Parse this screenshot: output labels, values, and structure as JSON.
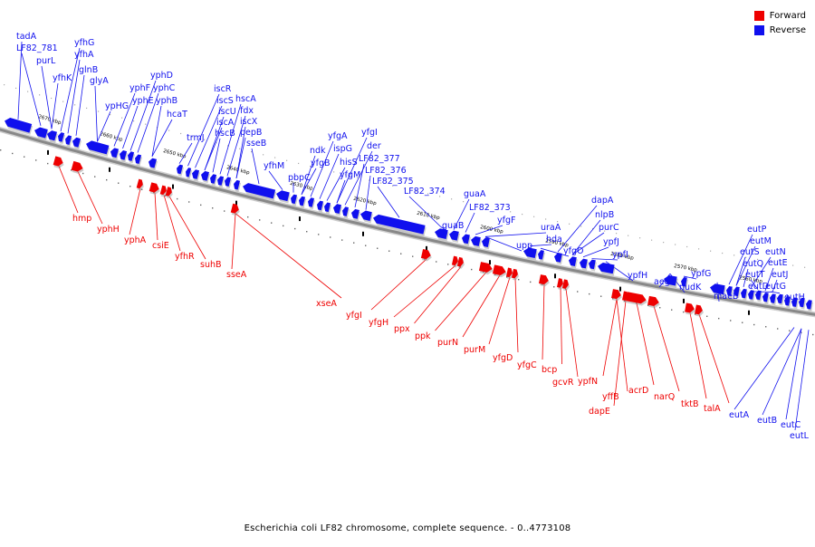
{
  "legend": {
    "forward": {
      "label": "Forward",
      "color": "#ee0000"
    },
    "reverse": {
      "label": "Reverse",
      "color": "#1010ee"
    }
  },
  "caption": "Escherichia coli LF82 chromosome, complete sequence. - 0..4773108",
  "backbone_color": "#888888",
  "ticks": [
    "2670 kbp",
    "2660 kbp",
    "2650 kbp",
    "2640 kbp",
    "2630 kbp",
    "2620 kbp",
    "2610 kbp",
    "2600 kbp",
    "2590 kbp",
    "2580 kbp",
    "2570 kbp",
    "2560 kbp"
  ],
  "reverse_genes": [
    "tadA",
    "LF82_781",
    "purL",
    "yfhK",
    "yfhG",
    "yfhA",
    "glnB",
    "glyA",
    "ypHG",
    "yphF",
    "yphE",
    "yphD",
    "yphC",
    "yphB",
    "hcaT",
    "trmJ",
    "iscR",
    "iscS",
    "iscU",
    "iscA",
    "hscB",
    "hscA",
    "fdx",
    "iscX",
    "pepB",
    "sseB",
    "yfhM",
    "pbpC",
    "ndk",
    "yfgB",
    "yfgA",
    "ispG",
    "hisS",
    "yfgM",
    "yfgI",
    "der",
    "LF82_377",
    "LF82_376",
    "LF82_375",
    "LF82_374",
    "guaB",
    "guaA",
    "LF82_373",
    "yfgF",
    "upp",
    "uraA",
    "hda",
    "yfgO",
    "dapA",
    "nlpB",
    "purC",
    "ypfJ",
    "ypfI",
    "ypfH",
    "aegA",
    "nudK",
    "ypfG",
    "maeB",
    "eutP",
    "eutS",
    "eutM",
    "eutQ",
    "eutN",
    "eutT",
    "eutE",
    "eutD",
    "eutJ",
    "eutG",
    "eutH",
    "eutA",
    "eutB",
    "eutC",
    "eutL"
  ],
  "forward_genes": [
    "hmp",
    "yphH",
    "yphA",
    "csiE",
    "yfhR",
    "suhB",
    "sseA",
    "xseA",
    "yfgI",
    "yfgH",
    "ppx",
    "ppk",
    "purN",
    "purM",
    "yfgD",
    "yfgC",
    "bcp",
    "gcvR",
    "ypfN",
    "yffB",
    "dapE",
    "acrD",
    "narQ",
    "tktB",
    "talA"
  ]
}
